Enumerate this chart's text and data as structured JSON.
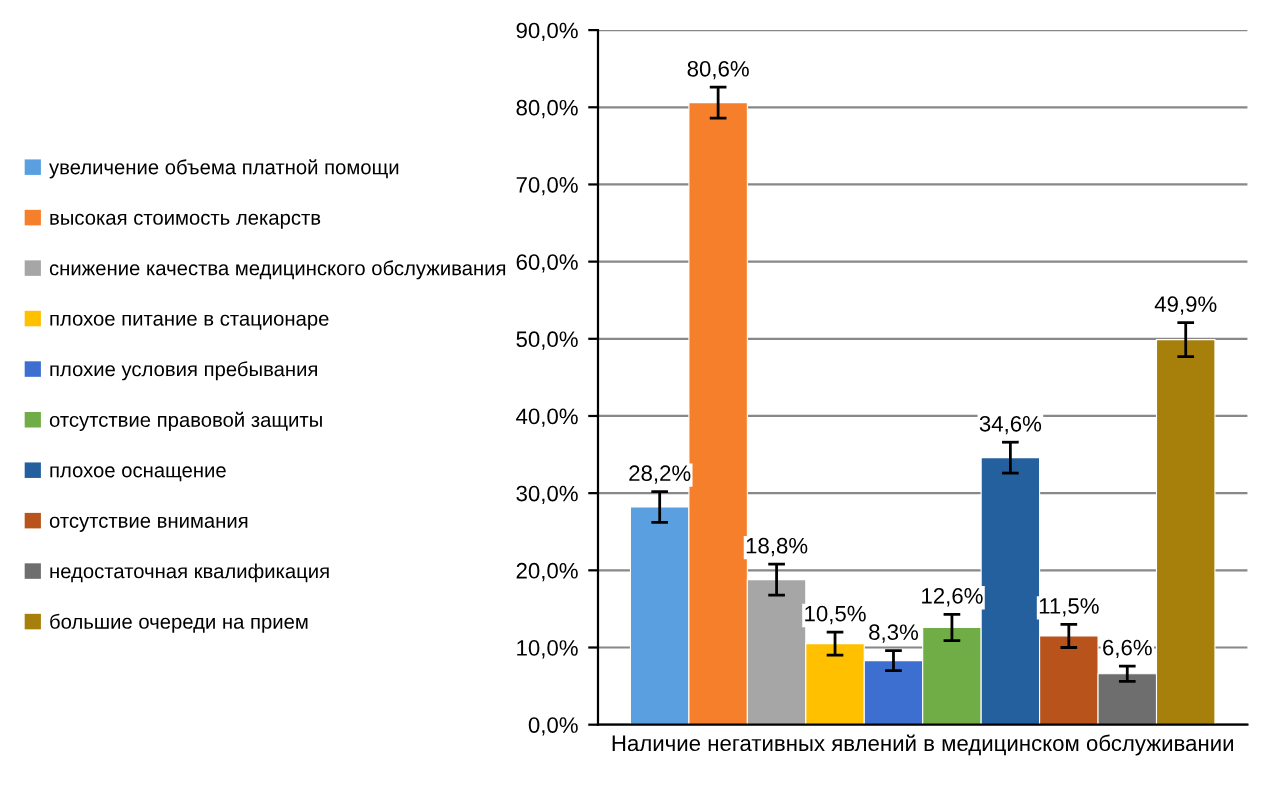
{
  "chart_data": {
    "type": "bar",
    "categories": [
      "Наличие негативных явлений в медицинском обслуживании"
    ],
    "series": [
      {
        "name": "увеличение объема платной помощи",
        "color": "#5aa0e0",
        "values": [
          28.2
        ],
        "errors": [
          2.0
        ],
        "value_labels": [
          "28,2%"
        ]
      },
      {
        "name": "высокая стоимость лекарств",
        "color": "#f57f2a",
        "values": [
          80.6
        ],
        "errors": [
          2.0
        ],
        "value_labels": [
          "80,6%"
        ]
      },
      {
        "name": "снижение качества медицинского обслуживания",
        "color": "#a6a6a6",
        "values": [
          18.8
        ],
        "errors": [
          2.0
        ],
        "value_labels": [
          "18,8%"
        ]
      },
      {
        "name": "плохое питание в стационаре",
        "color": "#ffc000",
        "values": [
          10.5
        ],
        "errors": [
          1.5
        ],
        "value_labels": [
          "10,5%"
        ]
      },
      {
        "name": "плохие условия пребывания",
        "color": "#3c6fd0",
        "values": [
          8.3
        ],
        "errors": [
          1.3
        ],
        "value_labels": [
          "8,3%"
        ]
      },
      {
        "name": "отсутствие правовой защиты",
        "color": "#70ad47",
        "values": [
          12.6
        ],
        "errors": [
          1.7
        ],
        "value_labels": [
          "12,6%"
        ]
      },
      {
        "name": "плохое оснащение",
        "color": "#24609e",
        "values": [
          34.6
        ],
        "errors": [
          2.0
        ],
        "value_labels": [
          "34,6%"
        ]
      },
      {
        "name": "отсутствие внимания",
        "color": "#b9531c",
        "values": [
          11.5
        ],
        "errors": [
          1.5
        ],
        "value_labels": [
          "11,5%"
        ]
      },
      {
        "name": "недостаточная квалификация",
        "color": "#6e6e6e",
        "values": [
          6.6
        ],
        "errors": [
          1.0
        ],
        "value_labels": [
          "6,6%"
        ]
      },
      {
        "name": "большие очереди на прием",
        "color": "#a6800a",
        "values": [
          49.9
        ],
        "errors": [
          2.2
        ],
        "value_labels": [
          "49,9%"
        ]
      }
    ],
    "ylim": [
      0,
      90
    ],
    "yticks": [
      {
        "value": 0,
        "label": "0,0%"
      },
      {
        "value": 10,
        "label": "10,0%"
      },
      {
        "value": 20,
        "label": "20,0%"
      },
      {
        "value": 30,
        "label": "30,0%"
      },
      {
        "value": 40,
        "label": "40,0%"
      },
      {
        "value": 50,
        "label": "50,0%"
      },
      {
        "value": 60,
        "label": "60,0%"
      },
      {
        "value": 70,
        "label": "70,0%"
      },
      {
        "value": 80,
        "label": "80,0%"
      },
      {
        "value": 90,
        "label": "90,0%"
      }
    ],
    "grid": "y",
    "legend": "left"
  }
}
